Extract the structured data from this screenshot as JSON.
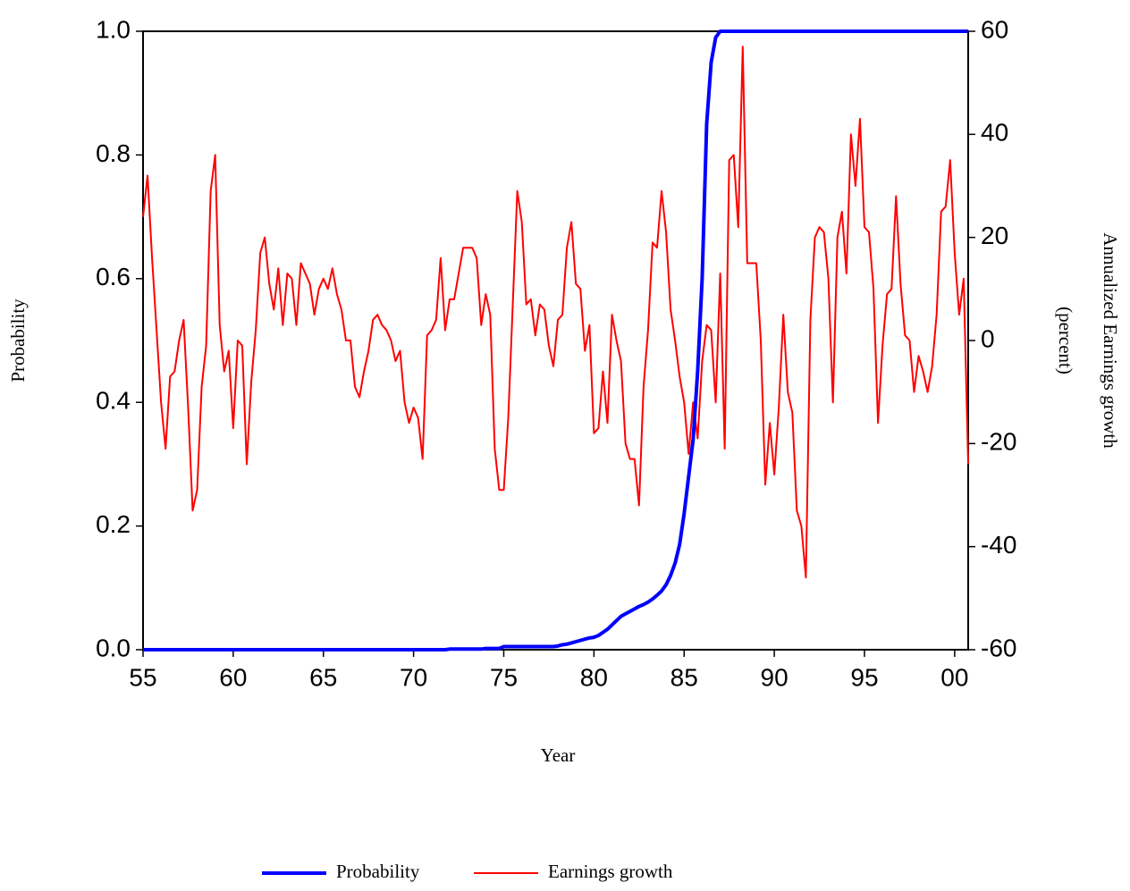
{
  "chart_data": {
    "type": "line",
    "xlabel": "Year",
    "ylabel": "Probability",
    "y2label": [
      "Annualized Earnings growth",
      "(percent)"
    ],
    "x": [
      1955,
      1955.25,
      1955.5,
      1955.75,
      1956,
      1956.25,
      1956.5,
      1956.75,
      1957,
      1957.25,
      1957.5,
      1957.75,
      1958,
      1958.25,
      1958.5,
      1958.75,
      1959,
      1959.25,
      1959.5,
      1959.75,
      1960,
      1960.25,
      1960.5,
      1960.75,
      1961,
      1961.25,
      1961.5,
      1961.75,
      1962,
      1962.25,
      1962.5,
      1962.75,
      1963,
      1963.25,
      1963.5,
      1963.75,
      1964,
      1964.25,
      1964.5,
      1964.75,
      1965,
      1965.25,
      1965.5,
      1965.75,
      1966,
      1966.25,
      1966.5,
      1966.75,
      1967,
      1967.25,
      1967.5,
      1967.75,
      1968,
      1968.25,
      1968.5,
      1968.75,
      1969,
      1969.25,
      1969.5,
      1969.75,
      1970,
      1970.25,
      1970.5,
      1970.75,
      1971,
      1971.25,
      1971.5,
      1971.75,
      1972,
      1972.25,
      1972.5,
      1972.75,
      1973,
      1973.25,
      1973.5,
      1973.75,
      1974,
      1974.25,
      1974.5,
      1974.75,
      1975,
      1975.25,
      1975.5,
      1975.75,
      1976,
      1976.25,
      1976.5,
      1976.75,
      1977,
      1977.25,
      1977.5,
      1977.75,
      1978,
      1978.25,
      1978.5,
      1978.75,
      1979,
      1979.25,
      1979.5,
      1979.75,
      1980,
      1980.25,
      1980.5,
      1980.75,
      1981,
      1981.25,
      1981.5,
      1981.75,
      1982,
      1982.25,
      1982.5,
      1982.75,
      1983,
      1983.25,
      1983.5,
      1983.75,
      1984,
      1984.25,
      1984.5,
      1984.75,
      1985,
      1985.25,
      1985.5,
      1985.75,
      1986,
      1986.25,
      1986.5,
      1986.75,
      1987,
      1987.25,
      1987.5,
      1987.75,
      1988,
      1988.25,
      1988.5,
      1988.75,
      1989,
      1989.25,
      1989.5,
      1989.75,
      1990,
      1990.25,
      1990.5,
      1990.75,
      1991,
      1991.25,
      1991.5,
      1991.75,
      1992,
      1992.25,
      1992.5,
      1992.75,
      1993,
      1993.25,
      1993.5,
      1993.75,
      1994,
      1994.25,
      1994.5,
      1994.75,
      1995,
      1995.25,
      1995.5,
      1995.75,
      1996,
      1996.25,
      1996.5,
      1996.75,
      1997,
      1997.25,
      1997.5,
      1997.75,
      1998,
      1998.25,
      1998.5,
      1998.75,
      1999,
      1999.25,
      1999.5,
      1999.75,
      2000,
      2000.25,
      2000.5,
      2000.75
    ],
    "series": [
      {
        "name": "Probability",
        "color": "#0000ff",
        "axis": "y",
        "values": [
          0,
          0,
          0,
          0,
          0,
          0,
          0,
          0,
          0,
          0,
          0,
          0,
          0,
          0,
          0,
          0,
          0,
          0,
          0,
          0,
          0,
          0,
          0,
          0,
          0,
          0,
          0,
          0,
          0,
          0,
          0,
          0,
          0,
          0,
          0,
          0,
          0,
          0,
          0,
          0,
          0,
          0,
          0,
          0,
          0,
          0,
          0,
          0,
          0,
          0,
          0,
          0,
          0,
          0,
          0,
          0,
          0,
          0,
          0,
          0,
          0,
          0,
          0,
          0,
          0,
          0,
          0,
          0,
          0.001,
          0.001,
          0.001,
          0.001,
          0.001,
          0.001,
          0.001,
          0.001,
          0.002,
          0.002,
          0.002,
          0.002,
          0.005,
          0.005,
          0.005,
          0.005,
          0.005,
          0.005,
          0.005,
          0.005,
          0.005,
          0.005,
          0.005,
          0.005,
          0.006,
          0.008,
          0.009,
          0.011,
          0.013,
          0.015,
          0.017,
          0.019,
          0.02,
          0.023,
          0.028,
          0.033,
          0.04,
          0.047,
          0.054,
          0.058,
          0.062,
          0.066,
          0.07,
          0.073,
          0.077,
          0.082,
          0.088,
          0.095,
          0.105,
          0.12,
          0.14,
          0.17,
          0.22,
          0.28,
          0.34,
          0.45,
          0.6,
          0.85,
          0.95,
          0.99,
          1,
          1,
          1,
          1,
          1,
          1,
          1,
          1,
          1,
          1,
          1,
          1,
          1,
          1,
          1,
          1,
          1,
          1,
          1,
          1,
          1,
          1,
          1,
          1,
          1,
          1,
          1,
          1,
          1,
          1,
          1,
          1,
          1,
          1,
          1,
          1,
          1,
          1,
          1,
          1,
          1,
          1,
          1,
          1,
          1,
          1,
          1,
          1,
          1,
          1,
          1,
          1,
          1,
          1,
          1,
          1
        ]
      },
      {
        "name": "Earnings growth",
        "color": "#ff0000",
        "axis": "y2",
        "values": [
          24,
          32,
          16,
          2,
          -12,
          -21,
          -7,
          -6,
          0,
          4,
          -13,
          -33,
          -29,
          -9,
          -1,
          29,
          36,
          3,
          -6,
          -2,
          -17,
          0,
          -1,
          -24,
          -8,
          2,
          17,
          20,
          11,
          6,
          14,
          3,
          13,
          12,
          3,
          15,
          13,
          11,
          5,
          10,
          12,
          10,
          14,
          9,
          6,
          0,
          0,
          -9,
          -11,
          -6,
          -2,
          4,
          5,
          3,
          2,
          0,
          -4,
          -2,
          -12,
          -16,
          -13,
          -15,
          -23,
          1,
          2,
          4,
          16,
          2,
          8,
          8,
          13,
          18,
          18,
          18,
          16,
          3,
          9,
          5,
          -21,
          -29,
          -29,
          -15,
          7,
          29,
          23,
          7,
          8,
          1,
          7,
          6,
          -1,
          -5,
          4,
          5,
          18,
          23,
          11,
          10,
          -2,
          3,
          -18,
          -17,
          -6,
          -16,
          5,
          0,
          -4,
          -20,
          -23,
          -23,
          -32,
          -9,
          2,
          19,
          18,
          29,
          21,
          6,
          0,
          -7,
          -12,
          -22,
          -12,
          -19,
          -4,
          3,
          2,
          -12,
          13,
          -21,
          35,
          36,
          22,
          57,
          15,
          15,
          15,
          0,
          -28,
          -16,
          -26,
          -13,
          5,
          -10,
          -14,
          -33,
          -36,
          -46,
          4,
          20,
          22,
          21,
          12,
          -12,
          20,
          25,
          13,
          40,
          30,
          43,
          22,
          21,
          10,
          -16,
          -1,
          9,
          10,
          28,
          11,
          1,
          0,
          -10,
          -3,
          -6,
          -10,
          -5,
          5,
          25,
          26,
          35,
          17,
          5,
          12,
          -24
        ]
      }
    ],
    "xlim": [
      1955,
      2000.75
    ],
    "xticks": [
      {
        "value": 1955,
        "label": "55"
      },
      {
        "value": 1960,
        "label": "60"
      },
      {
        "value": 1965,
        "label": "65"
      },
      {
        "value": 1970,
        "label": "70"
      },
      {
        "value": 1975,
        "label": "75"
      },
      {
        "value": 1980,
        "label": "80"
      },
      {
        "value": 1985,
        "label": "85"
      },
      {
        "value": 1990,
        "label": "90"
      },
      {
        "value": 1995,
        "label": "95"
      },
      {
        "value": 2000,
        "label": "00"
      }
    ],
    "ylim": [
      0,
      1
    ],
    "yticks": [
      {
        "value": 0,
        "label": "0.0"
      },
      0.2,
      0.4,
      0.6,
      0.8,
      {
        "value": 1,
        "label": "1.0"
      }
    ],
    "y2lim": [
      -60,
      60
    ],
    "y2ticks": [
      -60,
      -40,
      -20,
      0,
      20,
      40,
      60
    ],
    "grid": false
  }
}
